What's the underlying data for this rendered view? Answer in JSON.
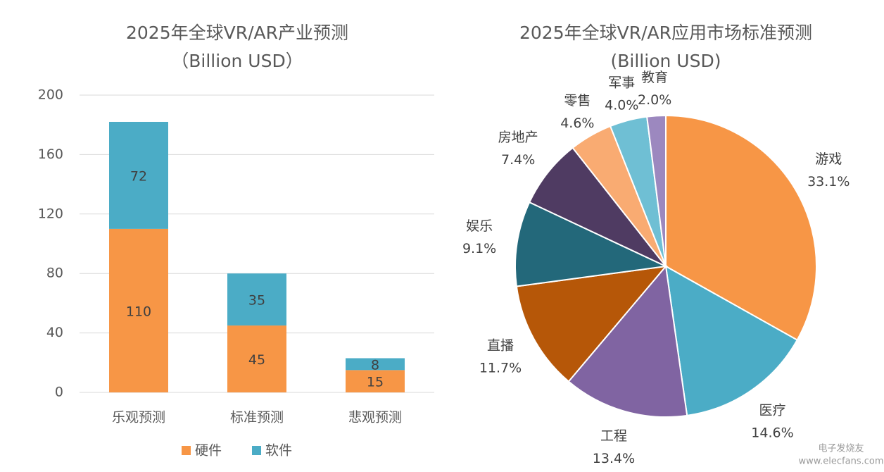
{
  "chart_data": [
    {
      "type": "bar",
      "stacked": true,
      "title": "2025年全球VR/AR产业预测",
      "subtitle": "（Billion USD）",
      "categories": [
        "乐观预测",
        "标准预测",
        "悲观预测"
      ],
      "series": [
        {
          "name": "硬件",
          "color": "#f79646",
          "values": [
            110,
            45,
            15
          ]
        },
        {
          "name": "软件",
          "color": "#4bacc6",
          "values": [
            72,
            35,
            8
          ]
        }
      ],
      "ylim": [
        0,
        200
      ],
      "yticks": [
        0,
        40,
        80,
        120,
        160,
        200
      ],
      "grid": true,
      "legend": "bottom"
    },
    {
      "type": "pie",
      "title": "2025年全球VR/AR应用市场标准预测",
      "subtitle": "(Billion USD)",
      "categories": [
        "游戏",
        "医疗",
        "工程",
        "直播",
        "娱乐",
        "房地产",
        "零售",
        "军事",
        "教育"
      ],
      "values": [
        33.1,
        14.6,
        13.4,
        11.7,
        9.1,
        7.4,
        4.6,
        4.0,
        2.0
      ],
      "value_labels": [
        "33.1%",
        "14.6%",
        "13.4%",
        "11.7%",
        "9.1%",
        "7.4%",
        "4.6%",
        "4.0%",
        "2.0%"
      ],
      "colors": [
        "#f79646",
        "#4bacc6",
        "#8064a2",
        "#b65708",
        "#23687a",
        "#4f3b62",
        "#f9ab72",
        "#6fbfd4",
        "#9c88bf"
      ]
    }
  ],
  "watermark": {
    "name": "电子发烧友",
    "url": "www.elecfans.com"
  }
}
